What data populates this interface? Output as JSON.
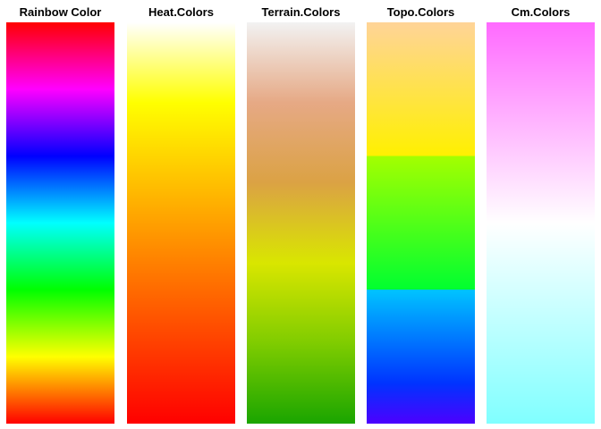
{
  "chart_data": {
    "type": "heatmap",
    "panels": [
      {
        "title": "Rainbow Color",
        "colors_top_to_bottom": [
          "#FF0000",
          "#FF00FF",
          "#0000FF",
          "#00FFFF",
          "#00FF00",
          "#FFFF00",
          "#FF0000"
        ]
      },
      {
        "title": "Heat.Colors",
        "colors_top_to_bottom": [
          "#FFFFFF",
          "#FFFF00",
          "#FFC000",
          "#FF8000",
          "#FF4000",
          "#FF0000"
        ]
      },
      {
        "title": "Terrain.Colors",
        "colors_top_to_bottom": [
          "#F2F2F2",
          "#E6A985",
          "#DBA244",
          "#D9E600",
          "#7FCC00",
          "#1AA500"
        ]
      },
      {
        "title": "Topo.Colors",
        "colors_top_to_bottom": [
          "#FFD498",
          "#FFF000",
          "#A4FF00",
          "#00FF30",
          "#00C4FF",
          "#0033FF",
          "#4C00FF"
        ]
      },
      {
        "title": "Cm.Colors",
        "colors_top_to_bottom": [
          "#FF6AFF",
          "#FFFFFF",
          "#80FFFF"
        ]
      }
    ],
    "grid": false,
    "legend": "none"
  }
}
